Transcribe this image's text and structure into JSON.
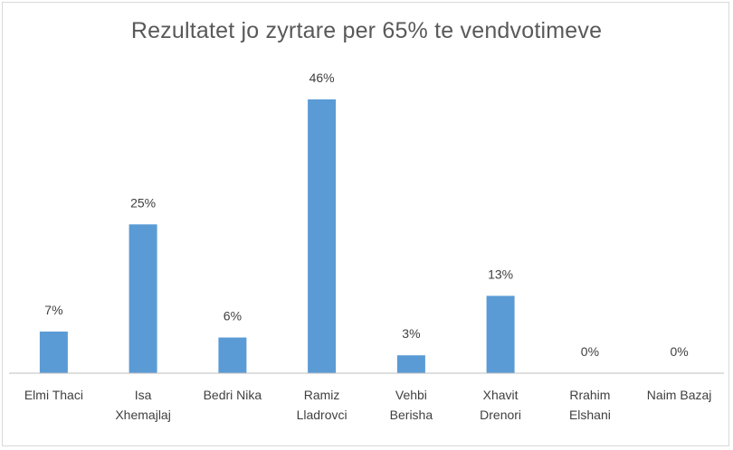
{
  "chart_data": {
    "type": "bar",
    "title": "Rezultatet jo zyrtare per 65% te vendvotimeve",
    "xlabel": "",
    "ylabel": "",
    "categories": [
      [
        "Elmi Thaci"
      ],
      [
        "Isa",
        "Xhemajlaj"
      ],
      [
        "Bedri Nika"
      ],
      [
        "Ramiz",
        "Lladrovci"
      ],
      [
        "Vehbi",
        "Berisha"
      ],
      [
        "Xhavit",
        "Drenori"
      ],
      [
        "Rrahim",
        "Elshani"
      ],
      [
        "Naim Bazaj"
      ]
    ],
    "values": [
      7,
      25,
      6,
      46,
      3,
      13,
      0,
      0
    ],
    "data_labels": [
      "7%",
      "25%",
      "6%",
      "46%",
      "3%",
      "13%",
      "0%",
      "0%"
    ],
    "ylim": [
      0,
      46
    ],
    "grid": false,
    "legend": "none",
    "colors": {
      "bar": "#5b9bd5"
    }
  }
}
